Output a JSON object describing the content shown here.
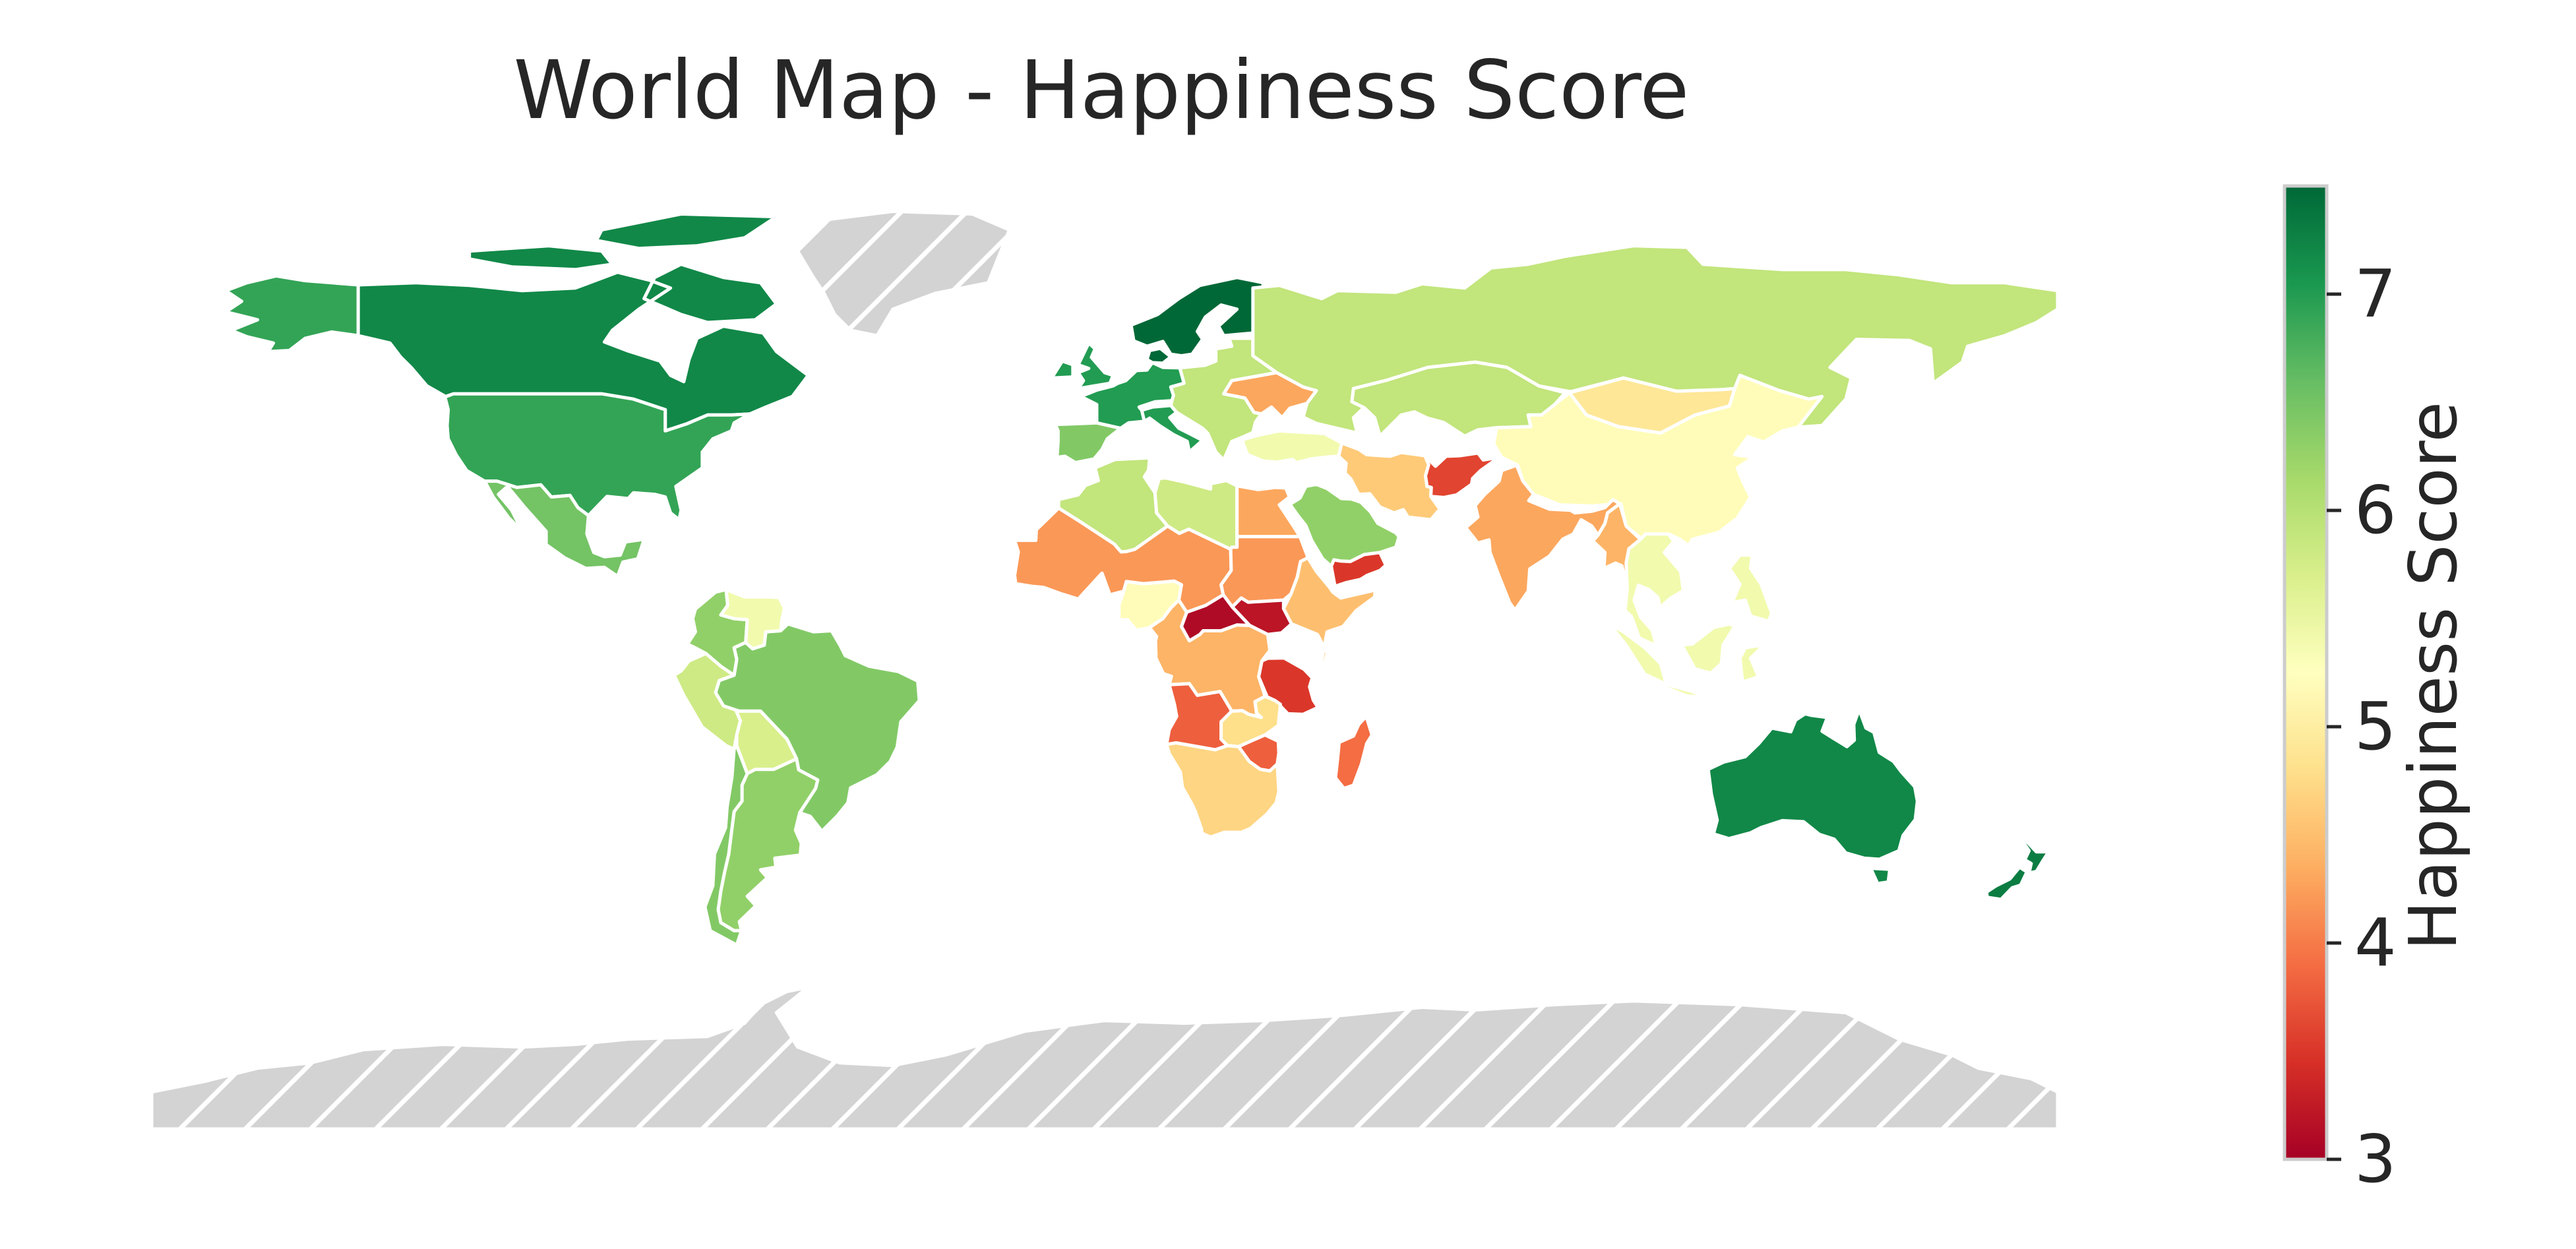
{
  "title": "World Map - Happiness Score",
  "colorbar": {
    "label": "Happiness Score",
    "min": 3,
    "max": 7.5,
    "colormap": "RdYlGn",
    "stops": [
      "#a50026",
      "#d73027",
      "#f46d43",
      "#fdae61",
      "#fee08b",
      "#ffffbf",
      "#d9ef8b",
      "#a6d96a",
      "#66bd63",
      "#1a9850",
      "#006837"
    ],
    "ticks": [
      "3",
      "4",
      "5",
      "6",
      "7"
    ]
  },
  "map": {
    "projection": "plate-carree",
    "missing_data_style": "light gray with white diagonal hatching",
    "missing_color": "#d3d3d3",
    "border_color": "#ffffff",
    "ocean_color": "#ffffff"
  },
  "chart_data": {
    "type": "choropleth",
    "value_name": "Happiness Score",
    "range": [
      3,
      7.5
    ],
    "regions": [
      {
        "region": "Canada",
        "value": 7.2
      },
      {
        "region": "Alaska (United States)",
        "value": 6.9
      },
      {
        "region": "United States",
        "value": 6.9
      },
      {
        "region": "Mexico",
        "value": 6.5
      },
      {
        "region": "Greenland",
        "value": null
      },
      {
        "region": "Brazil",
        "value": 6.4
      },
      {
        "region": "Argentina",
        "value": 6.3
      },
      {
        "region": "Chile",
        "value": 6.4
      },
      {
        "region": "Peru",
        "value": 5.8
      },
      {
        "region": "Colombia",
        "value": 6.3
      },
      {
        "region": "Venezuela",
        "value": 5.4
      },
      {
        "region": "Bolivia",
        "value": 5.7
      },
      {
        "region": "Nordic countries",
        "value": 7.5
      },
      {
        "region": "Western Europe",
        "value": 7.0
      },
      {
        "region": "Spain",
        "value": 6.4
      },
      {
        "region": "Eastern Europe",
        "value": 5.9
      },
      {
        "region": "Ukraine",
        "value": 4.3
      },
      {
        "region": "Russia",
        "value": 5.9
      },
      {
        "region": "Kazakhstan",
        "value": 5.9
      },
      {
        "region": "Mongolia",
        "value": 4.9
      },
      {
        "region": "China",
        "value": 5.2
      },
      {
        "region": "Turkey",
        "value": 5.4
      },
      {
        "region": "Iran",
        "value": 4.6
      },
      {
        "region": "Afghanistan",
        "value": 3.6
      },
      {
        "region": "India",
        "value": 4.3
      },
      {
        "region": "Saudi Arabia",
        "value": 6.3
      },
      {
        "region": "Yemen",
        "value": 3.5
      },
      {
        "region": "Algeria",
        "value": 5.9
      },
      {
        "region": "Libya",
        "value": 5.8
      },
      {
        "region": "Egypt",
        "value": 4.3
      },
      {
        "region": "Sahel (Mali, Niger, Chad)",
        "value": 4.2
      },
      {
        "region": "Sudan",
        "value": 4.2
      },
      {
        "region": "Central African Republic",
        "value": 3.1
      },
      {
        "region": "South Sudan",
        "value": 3.2
      },
      {
        "region": "Nigeria",
        "value": 5.2
      },
      {
        "region": "Ethiopia",
        "value": 4.5
      },
      {
        "region": "DR Congo",
        "value": 4.4
      },
      {
        "region": "Tanzania",
        "value": 3.5
      },
      {
        "region": "Angola",
        "value": 3.8
      },
      {
        "region": "Zambia",
        "value": 4.8
      },
      {
        "region": "Zimbabwe",
        "value": 3.8
      },
      {
        "region": "South Africa",
        "value": 4.7
      },
      {
        "region": "Madagascar",
        "value": 3.9
      },
      {
        "region": "Southeast Asia",
        "value": 5.4
      },
      {
        "region": "Myanmar",
        "value": 4.4
      },
      {
        "region": "Australia",
        "value": 7.2
      },
      {
        "region": "New Zealand",
        "value": 7.3
      },
      {
        "region": "Antarctica",
        "value": null
      }
    ]
  }
}
